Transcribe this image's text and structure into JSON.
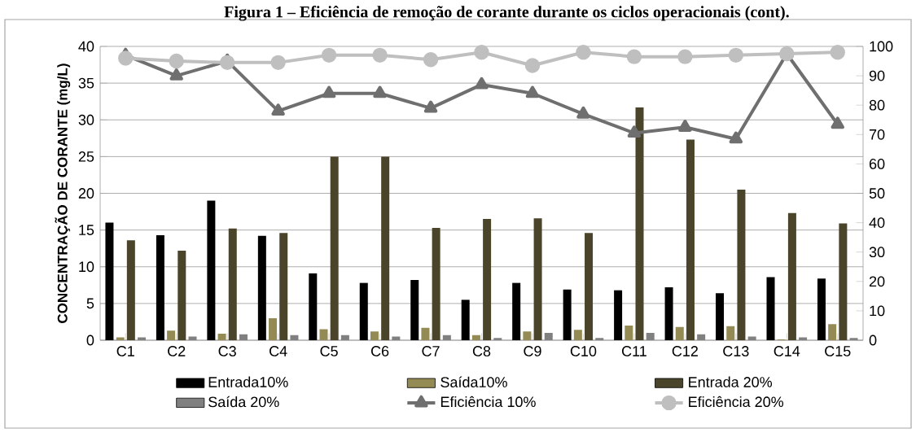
{
  "chart_data": {
    "type": "bar",
    "title": "Figura 1 – Eficiência de remoção de corante durante os ciclos operacionais (cont).",
    "ylabel": "CONCENTRAÇÃO DE CORANTE  (mg/L)",
    "categories": [
      "C1",
      "C2",
      "C3",
      "C4",
      "C5",
      "C6",
      "C7",
      "C8",
      "C9",
      "C10",
      "C11",
      "C12",
      "C13",
      "C14",
      "C15"
    ],
    "series": [
      {
        "name": "Entrada10%",
        "color": "#000000",
        "values": [
          16,
          14.3,
          19,
          14.2,
          9.1,
          7.8,
          8.2,
          5.5,
          7.8,
          6.9,
          6.8,
          7.2,
          6.4,
          8.6,
          8.4
        ]
      },
      {
        "name": "Saída10%",
        "color": "#948a54",
        "values": [
          0.4,
          1.3,
          0.9,
          3.0,
          1.5,
          1.2,
          1.7,
          0.7,
          1.2,
          1.4,
          2.0,
          1.8,
          1.9,
          0.1,
          2.2
        ]
      },
      {
        "name": "Entrada 20%",
        "color": "#4a442a",
        "values": [
          13.6,
          12.2,
          15.2,
          14.6,
          25,
          25,
          15.3,
          16.5,
          16.6,
          14.6,
          31.7,
          27.3,
          20.5,
          17.3,
          15.9
        ]
      },
      {
        "name": "Saída 20%",
        "color": "#808080",
        "values": [
          0.4,
          0.5,
          0.8,
          0.7,
          0.7,
          0.5,
          0.7,
          0.3,
          1.0,
          0.3,
          1.0,
          0.8,
          0.5,
          0.4,
          0.3
        ]
      },
      {
        "name": "Eficiência 10%",
        "type": "line",
        "axis": "y2",
        "marker": "triangle",
        "line_style": "solid",
        "color": "#6f6f6f",
        "values": [
          97,
          90,
          95,
          78,
          84,
          84,
          79,
          87,
          84,
          77,
          70.5,
          72.5,
          68.5,
          97.5,
          73.5
        ]
      },
      {
        "name": "Eficiência 20%",
        "type": "line",
        "axis": "y2",
        "marker": "circle",
        "line_style": "solid",
        "color": "#bfbfbf",
        "values": [
          96,
          95,
          94.5,
          94.5,
          97,
          97,
          95.5,
          98,
          93.5,
          98,
          96.5,
          96.5,
          97,
          97.5,
          98
        ]
      }
    ],
    "ylim": [
      0,
      40
    ],
    "yticks": [
      0,
      5,
      10,
      15,
      20,
      25,
      30,
      35,
      40
    ],
    "y2lim": [
      0,
      100
    ],
    "y2ticks": [
      0,
      10,
      20,
      30,
      40,
      50,
      60,
      70,
      80,
      90,
      100
    ],
    "grid": "y",
    "legend": "bottom"
  }
}
